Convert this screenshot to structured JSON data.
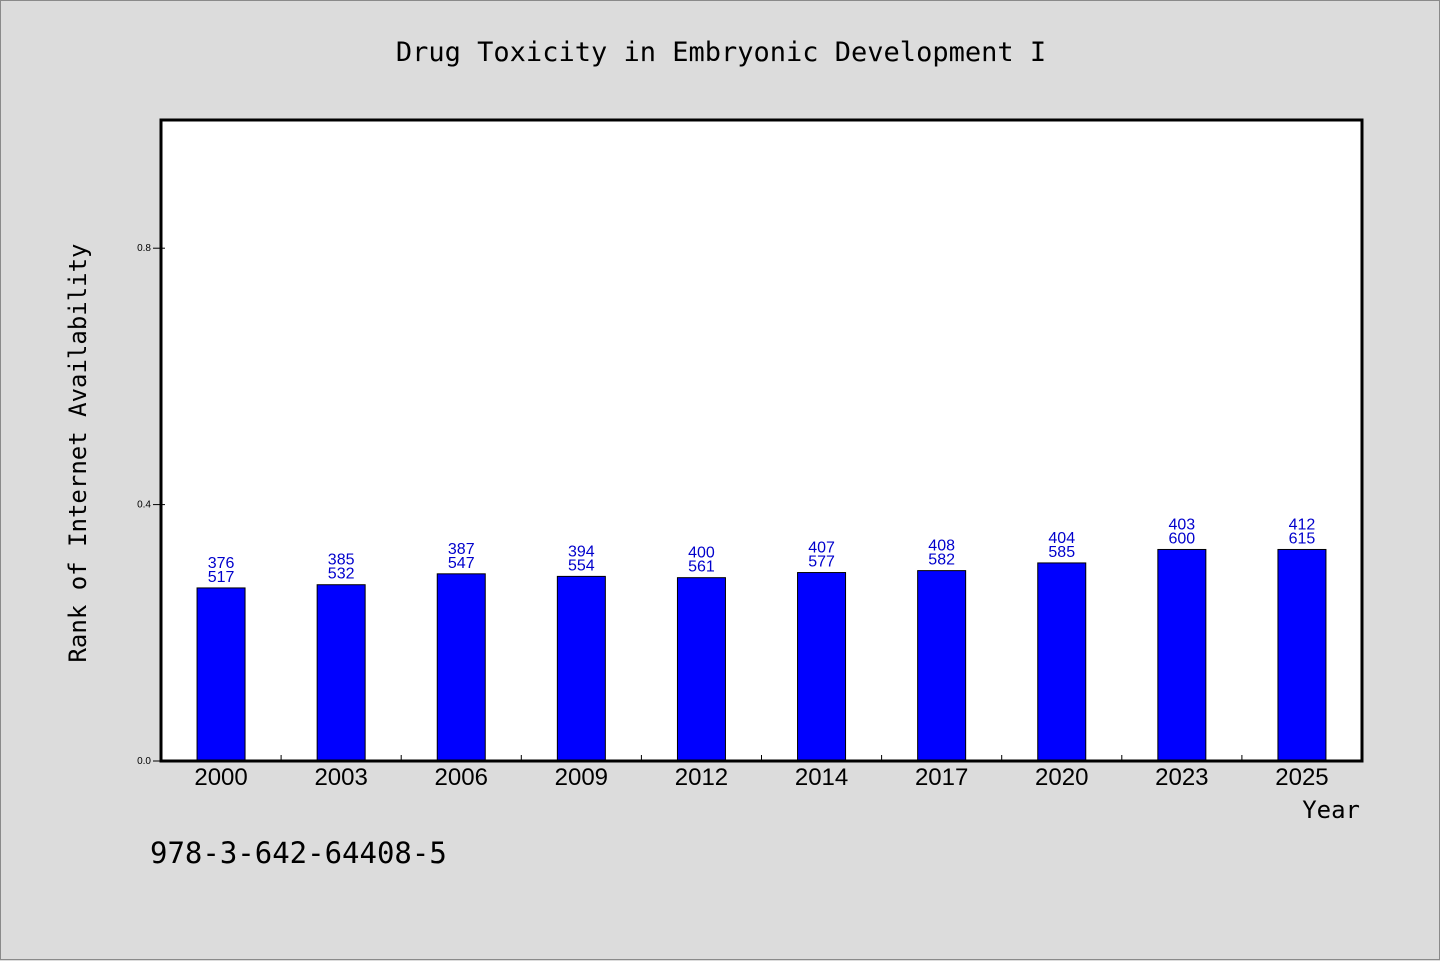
{
  "chart_data": {
    "type": "bar",
    "title": "Drug Toxicity in Embryonic Development I",
    "xlabel": "Year",
    "ylabel": "Rank of Internet Availability",
    "categories": [
      "2000",
      "2003",
      "2006",
      "2009",
      "2012",
      "2014",
      "2017",
      "2020",
      "2023",
      "2025"
    ],
    "values": [
      0.27,
      0.275,
      0.292,
      0.288,
      0.286,
      0.294,
      0.297,
      0.309,
      0.33,
      0.33
    ],
    "label_top": [
      "376",
      "385",
      "387",
      "394",
      "400",
      "407",
      "408",
      "404",
      "403",
      "412"
    ],
    "label_bottom": [
      "517",
      "532",
      "547",
      "554",
      "561",
      "577",
      "582",
      "585",
      "600",
      "615"
    ],
    "ylim": [
      0,
      1.0
    ],
    "yticks": [
      "0.0",
      "0.4",
      "0.8"
    ],
    "grid": false,
    "bar_color": "#0000ff",
    "label_color": "#0000cc"
  },
  "footer": {
    "isbn": "978-3-642-64408-5"
  }
}
